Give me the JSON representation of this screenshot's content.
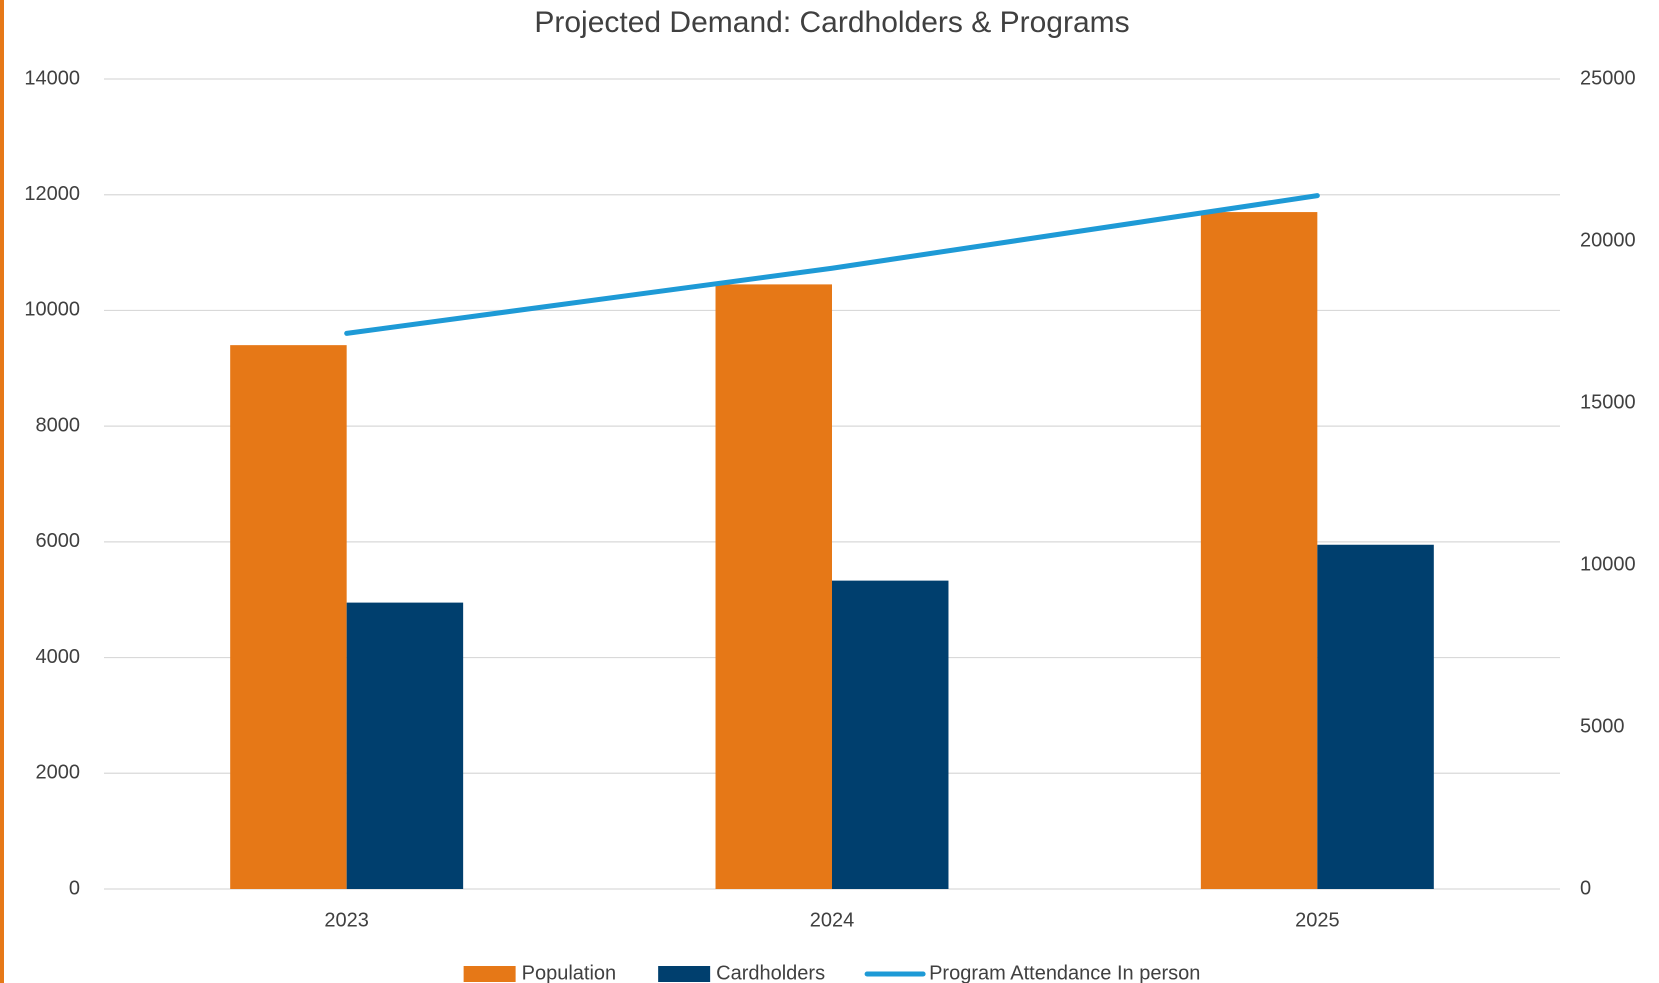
{
  "chart_data": {
    "type": "bar",
    "title": "Projected Demand: Cardholders & Programs",
    "categories": [
      "2023",
      "2024",
      "2025"
    ],
    "series": [
      {
        "name": "Population",
        "color": "#e67817",
        "values": [
          9400,
          10450,
          11700
        ]
      },
      {
        "name": "Cardholders",
        "color": "#003f6e",
        "values": [
          4950,
          5330,
          5950
        ]
      },
      {
        "name": "Program Attendance  In person",
        "color": "#1e9ad6",
        "type": "line",
        "axis": "y2",
        "values": [
          17150,
          19160,
          21400
        ]
      }
    ],
    "ylim": [
      0,
      14000
    ],
    "yticks": [
      0,
      2000,
      4000,
      6000,
      8000,
      10000,
      12000,
      14000
    ],
    "y2lim": [
      0,
      25000
    ],
    "y2ticks": [
      0,
      5000,
      10000,
      15000,
      20000,
      25000
    ],
    "grid": true,
    "legend": "bottom"
  }
}
